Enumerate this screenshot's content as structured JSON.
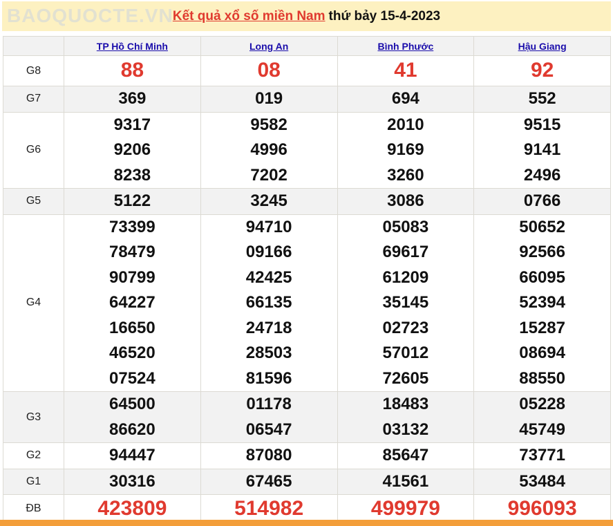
{
  "title": {
    "link": "Kết quả xổ số miền Nam",
    "rest": "thứ bảy 15-4-2023"
  },
  "provinces": [
    "TP Hồ Chí Minh",
    "Long An",
    "Bình Phước",
    "Hậu Giang"
  ],
  "prizes": [
    {
      "label": "G8",
      "values": [
        [
          "88"
        ],
        [
          "08"
        ],
        [
          "41"
        ],
        [
          "92"
        ]
      ]
    },
    {
      "label": "G7",
      "values": [
        [
          "369"
        ],
        [
          "019"
        ],
        [
          "694"
        ],
        [
          "552"
        ]
      ]
    },
    {
      "label": "G6",
      "values": [
        [
          "9317",
          "9206",
          "8238"
        ],
        [
          "9582",
          "4996",
          "7202"
        ],
        [
          "2010",
          "9169",
          "3260"
        ],
        [
          "9515",
          "9141",
          "2496"
        ]
      ]
    },
    {
      "label": "G5",
      "values": [
        [
          "5122"
        ],
        [
          "3245"
        ],
        [
          "3086"
        ],
        [
          "0766"
        ]
      ]
    },
    {
      "label": "G4",
      "values": [
        [
          "73399",
          "78479",
          "90799",
          "64227",
          "16650",
          "46520",
          "07524"
        ],
        [
          "94710",
          "09166",
          "42425",
          "66135",
          "24718",
          "28503",
          "81596"
        ],
        [
          "05083",
          "69617",
          "61209",
          "35145",
          "02723",
          "57012",
          "72605"
        ],
        [
          "50652",
          "92566",
          "66095",
          "52394",
          "15287",
          "08694",
          "88550"
        ]
      ]
    },
    {
      "label": "G3",
      "values": [
        [
          "64500",
          "86620"
        ],
        [
          "01178",
          "06547"
        ],
        [
          "18483",
          "03132"
        ],
        [
          "05228",
          "45749"
        ]
      ]
    },
    {
      "label": "G2",
      "values": [
        [
          "94447"
        ],
        [
          "87080"
        ],
        [
          "85647"
        ],
        [
          "73771"
        ]
      ]
    },
    {
      "label": "G1",
      "values": [
        [
          "30316"
        ],
        [
          "67465"
        ],
        [
          "41561"
        ],
        [
          "53484"
        ]
      ]
    },
    {
      "label": "ĐB",
      "values": [
        [
          "423809"
        ],
        [
          "514982"
        ],
        [
          "499979"
        ],
        [
          "996093"
        ]
      ]
    }
  ],
  "watermark": "BAOQUOCTE.VN",
  "colors": {
    "accent_red": "#e03a2f",
    "title_bg": "#fdf1c1",
    "link": "#1a0dab",
    "bottom_bar": "#f39e3a"
  }
}
